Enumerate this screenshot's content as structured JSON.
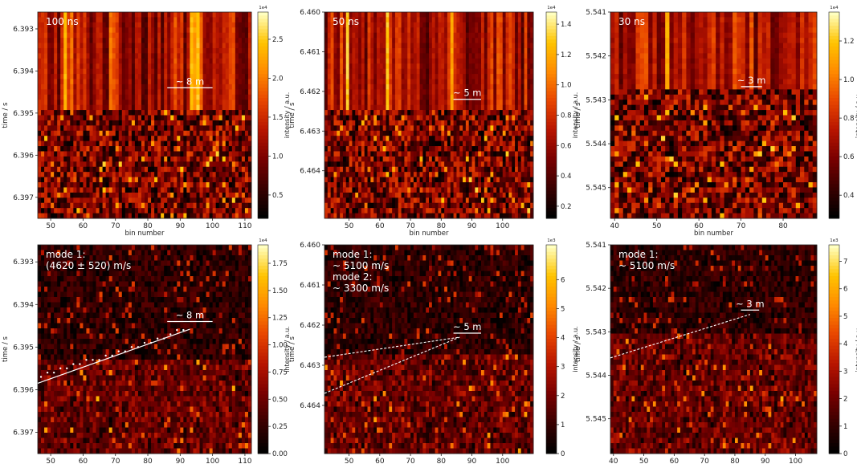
{
  "colors": {
    "colormap": [
      "#000000",
      "#3a0000",
      "#7a0000",
      "#b81500",
      "#e84600",
      "#ff8a00",
      "#ffc400",
      "#ffffc0"
    ],
    "annotation": "#ffffff",
    "axis": "#222222"
  },
  "chart_data": [
    {
      "type": "heatmap",
      "panel": "top-left",
      "label": "100 ns",
      "xlabel": "bin number",
      "ylabel": "time / s",
      "xlim": [
        46,
        112
      ],
      "ylim": [
        6.3926,
        6.3975
      ],
      "xticks": [
        "50",
        "60",
        "70",
        "80",
        "90",
        "100",
        "110"
      ],
      "xtick_values": [
        50,
        60,
        70,
        80,
        90,
        100,
        110
      ],
      "yticks": [
        "6.393",
        "6.394",
        "6.395",
        "6.396",
        "6.397"
      ],
      "ytick_values": [
        6.393,
        6.394,
        6.395,
        6.396,
        6.397
      ],
      "colorbar": {
        "label": "intensity / a.u.",
        "exponent": "1e4",
        "min": 0.2,
        "max": 2.85,
        "ticks": [
          "0.5",
          "1.0",
          "1.5",
          "2.0",
          "2.5"
        ],
        "tick_values": [
          0.5,
          1.0,
          1.5,
          2.0,
          2.5
        ]
      },
      "scale_bar": {
        "label": "~ 8 m",
        "x": [
          86,
          100
        ],
        "y": 6.3944
      },
      "front_time": 6.3949
    },
    {
      "type": "heatmap",
      "panel": "top-middle",
      "label": "50 ns",
      "xlabel": "bin number",
      "ylabel": "time / s",
      "xlim": [
        42,
        110
      ],
      "ylim": [
        6.46,
        6.4652
      ],
      "xticks": [
        "50",
        "60",
        "70",
        "80",
        "90",
        "100"
      ],
      "xtick_values": [
        50,
        60,
        70,
        80,
        90,
        100
      ],
      "yticks": [
        "6.460",
        "6.461",
        "6.462",
        "6.463",
        "6.464"
      ],
      "ytick_values": [
        6.46,
        6.461,
        6.462,
        6.463,
        6.464
      ],
      "colorbar": {
        "label": "intensity / a.u.",
        "exponent": "1e4",
        "min": 0.12,
        "max": 1.48,
        "ticks": [
          "0.2",
          "0.4",
          "0.6",
          "0.8",
          "1.0",
          "1.2",
          "1.4"
        ],
        "tick_values": [
          0.2,
          0.4,
          0.6,
          0.8,
          1.0,
          1.2,
          1.4
        ]
      },
      "scale_bar": {
        "label": "~ 5 m",
        "x": [
          84,
          93
        ],
        "y": 6.4622
      },
      "front_time": 6.4625
    },
    {
      "type": "heatmap",
      "panel": "top-right",
      "label": "30 ns",
      "xlabel": "bin number",
      "ylabel": "time / s",
      "xlim": [
        39,
        88
      ],
      "ylim": [
        5.541,
        5.5457
      ],
      "xticks": [
        "40",
        "50",
        "60",
        "70",
        "80"
      ],
      "xtick_values": [
        40,
        50,
        60,
        70,
        80
      ],
      "yticks": [
        "5.541",
        "5.542",
        "5.543",
        "5.544",
        "5.545"
      ],
      "ytick_values": [
        5.541,
        5.542,
        5.543,
        5.544,
        5.545
      ],
      "colorbar": {
        "label": "intensity / a.u.",
        "exponent": "1e4",
        "min": 0.28,
        "max": 1.35,
        "ticks": [
          "0.4",
          "0.6",
          "0.8",
          "1.0",
          "1.2"
        ],
        "tick_values": [
          0.4,
          0.6,
          0.8,
          1.0,
          1.2
        ]
      },
      "scale_bar": {
        "label": "~ 3 m",
        "x": [
          70,
          75
        ],
        "y": 5.5427
      },
      "front_time": 5.5428
    },
    {
      "type": "heatmap",
      "panel": "bottom-left",
      "label": "mode 1:\n(4620 ± 520) m/s",
      "xlabel": "bin number",
      "ylabel": "time / s",
      "xlim": [
        46,
        112
      ],
      "ylim": [
        6.3926,
        6.3975
      ],
      "xticks": [
        "50",
        "60",
        "70",
        "80",
        "90",
        "100",
        "110"
      ],
      "xtick_values": [
        50,
        60,
        70,
        80,
        90,
        100,
        110
      ],
      "yticks": [
        "6.393",
        "6.394",
        "6.395",
        "6.396",
        "6.397"
      ],
      "ytick_values": [
        6.393,
        6.394,
        6.395,
        6.396,
        6.397
      ],
      "colorbar": {
        "label": "intensity / a.u.",
        "exponent": "1e4",
        "min": 0,
        "max": 1.92,
        "ticks": [
          "0.00",
          "0.25",
          "0.50",
          "0.75",
          "1.00",
          "1.25",
          "1.50",
          "1.75"
        ],
        "tick_values": [
          0,
          0.25,
          0.5,
          0.75,
          1.0,
          1.25,
          1.5,
          1.75
        ]
      },
      "scale_bar": {
        "label": "~ 8 m",
        "x": [
          86,
          100
        ],
        "y": 6.3944
      },
      "fit_lines": [
        {
          "x": [
            46,
            93
          ],
          "y": [
            6.39585,
            6.39458
          ],
          "style": "solid"
        }
      ],
      "points": [
        [
          47,
          6.3957
        ],
        [
          49,
          6.3956
        ],
        [
          51,
          6.3956
        ],
        [
          53,
          6.3955
        ],
        [
          55,
          6.3955
        ],
        [
          57,
          6.3954
        ],
        [
          59,
          6.3954
        ],
        [
          61,
          6.3953
        ],
        [
          63,
          6.3953
        ],
        [
          65,
          6.3953
        ],
        [
          67,
          6.3952
        ],
        [
          69,
          6.3952
        ],
        [
          71,
          6.3951
        ],
        [
          73,
          6.3951
        ],
        [
          75,
          6.395
        ],
        [
          77,
          6.395
        ],
        [
          79,
          6.3949
        ],
        [
          81,
          6.3949
        ],
        [
          83,
          6.3948
        ],
        [
          85,
          6.3948
        ],
        [
          87,
          6.3947
        ],
        [
          89,
          6.3946
        ],
        [
          91,
          6.3946
        ]
      ],
      "front_time": 6.3952
    },
    {
      "type": "heatmap",
      "panel": "bottom-middle",
      "label": "mode 1:\n~ 5100 m/s\n\nmode 2:\n~ 3300 m/s",
      "xlabel": "bin number",
      "ylabel": "time / s",
      "xlim": [
        42,
        110
      ],
      "ylim": [
        6.46,
        6.4652
      ],
      "xticks": [
        "50",
        "60",
        "70",
        "80",
        "90",
        "100"
      ],
      "xtick_values": [
        50,
        60,
        70,
        80,
        90,
        100
      ],
      "yticks": [
        "6.460",
        "6.461",
        "6.462",
        "6.463",
        "6.464"
      ],
      "ytick_values": [
        6.46,
        6.461,
        6.462,
        6.463,
        6.464
      ],
      "colorbar": {
        "label": "intensity / a.u.",
        "exponent": "1e3",
        "min": 0,
        "max": 7.2,
        "ticks": [
          "0",
          "1",
          "2",
          "3",
          "4",
          "5",
          "6"
        ],
        "tick_values": [
          0,
          1,
          2,
          3,
          4,
          5,
          6
        ]
      },
      "scale_bar": {
        "label": "~ 5 m",
        "x": [
          84,
          93
        ],
        "y": 6.4622
      },
      "fit_lines": [
        {
          "x": [
            42,
            86
          ],
          "y": [
            6.4628,
            6.4623
          ],
          "style": "dashed"
        },
        {
          "x": [
            42,
            86
          ],
          "y": [
            6.4637,
            6.4623
          ],
          "style": "dashed"
        }
      ],
      "front_time": 6.4626
    },
    {
      "type": "heatmap",
      "panel": "bottom-right",
      "label": "mode 1:\n~ 5100 m/s",
      "xlabel": "bin number",
      "ylabel": "time / s",
      "xlim": [
        39,
        107
      ],
      "ylim": [
        5.541,
        5.5458
      ],
      "xticks": [
        "40",
        "50",
        "60",
        "70",
        "80",
        "90",
        "100"
      ],
      "xtick_values": [
        40,
        50,
        60,
        70,
        80,
        90,
        100
      ],
      "yticks": [
        "5.541",
        "5.542",
        "5.543",
        "5.544",
        "5.545"
      ],
      "ytick_values": [
        5.541,
        5.542,
        5.543,
        5.544,
        5.545
      ],
      "colorbar": {
        "label": "intensity / a.u.",
        "exponent": "1e3",
        "min": 0,
        "max": 7.6,
        "ticks": [
          "0",
          "1",
          "2",
          "3",
          "4",
          "5",
          "6",
          "7"
        ],
        "tick_values": [
          0,
          1,
          2,
          3,
          4,
          5,
          6,
          7
        ]
      },
      "scale_bar": {
        "label": "~ 3 m",
        "x": [
          82,
          88
        ],
        "y": 5.5425
      },
      "fit_lines": [
        {
          "x": [
            39,
            85
          ],
          "y": [
            5.5436,
            5.5426
          ],
          "style": "dashed"
        }
      ],
      "front_time": 5.543
    }
  ]
}
